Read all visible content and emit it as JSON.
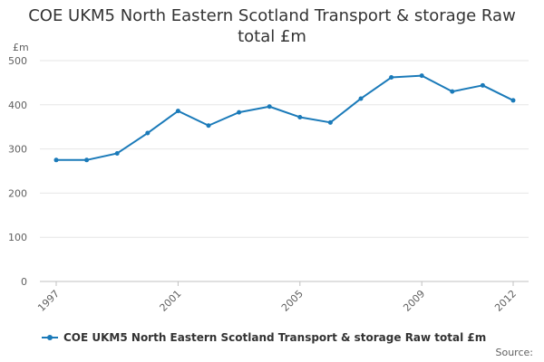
{
  "chart_data": {
    "type": "line",
    "title": "COE UKM5 North Eastern Scotland Transport & storage Raw total £m",
    "title_lines": [
      "COE UKM5 North Eastern Scotland Transport & storage Raw",
      "total £m"
    ],
    "ylabel": "£m",
    "xlabel": "",
    "ylim": [
      0,
      500
    ],
    "yticks": [
      0,
      100,
      200,
      300,
      400,
      500
    ],
    "xticks": [
      1997,
      2001,
      2005,
      2009,
      2012
    ],
    "x": [
      1997,
      1998,
      1999,
      2000,
      2001,
      2002,
      2003,
      2004,
      2005,
      2006,
      2007,
      2008,
      2009,
      2010,
      2011,
      2012
    ],
    "series": [
      {
        "name": "COE UKM5 North Eastern Scotland Transport & storage Raw total £m",
        "values": [
          275,
          275,
          290,
          336,
          386,
          353,
          383,
          396,
          372,
          360,
          414,
          462,
          466,
          430,
          444,
          410
        ],
        "color": "#1a7ab9"
      }
    ],
    "grid": true,
    "legend": "bottom-left",
    "source": "Source:"
  }
}
